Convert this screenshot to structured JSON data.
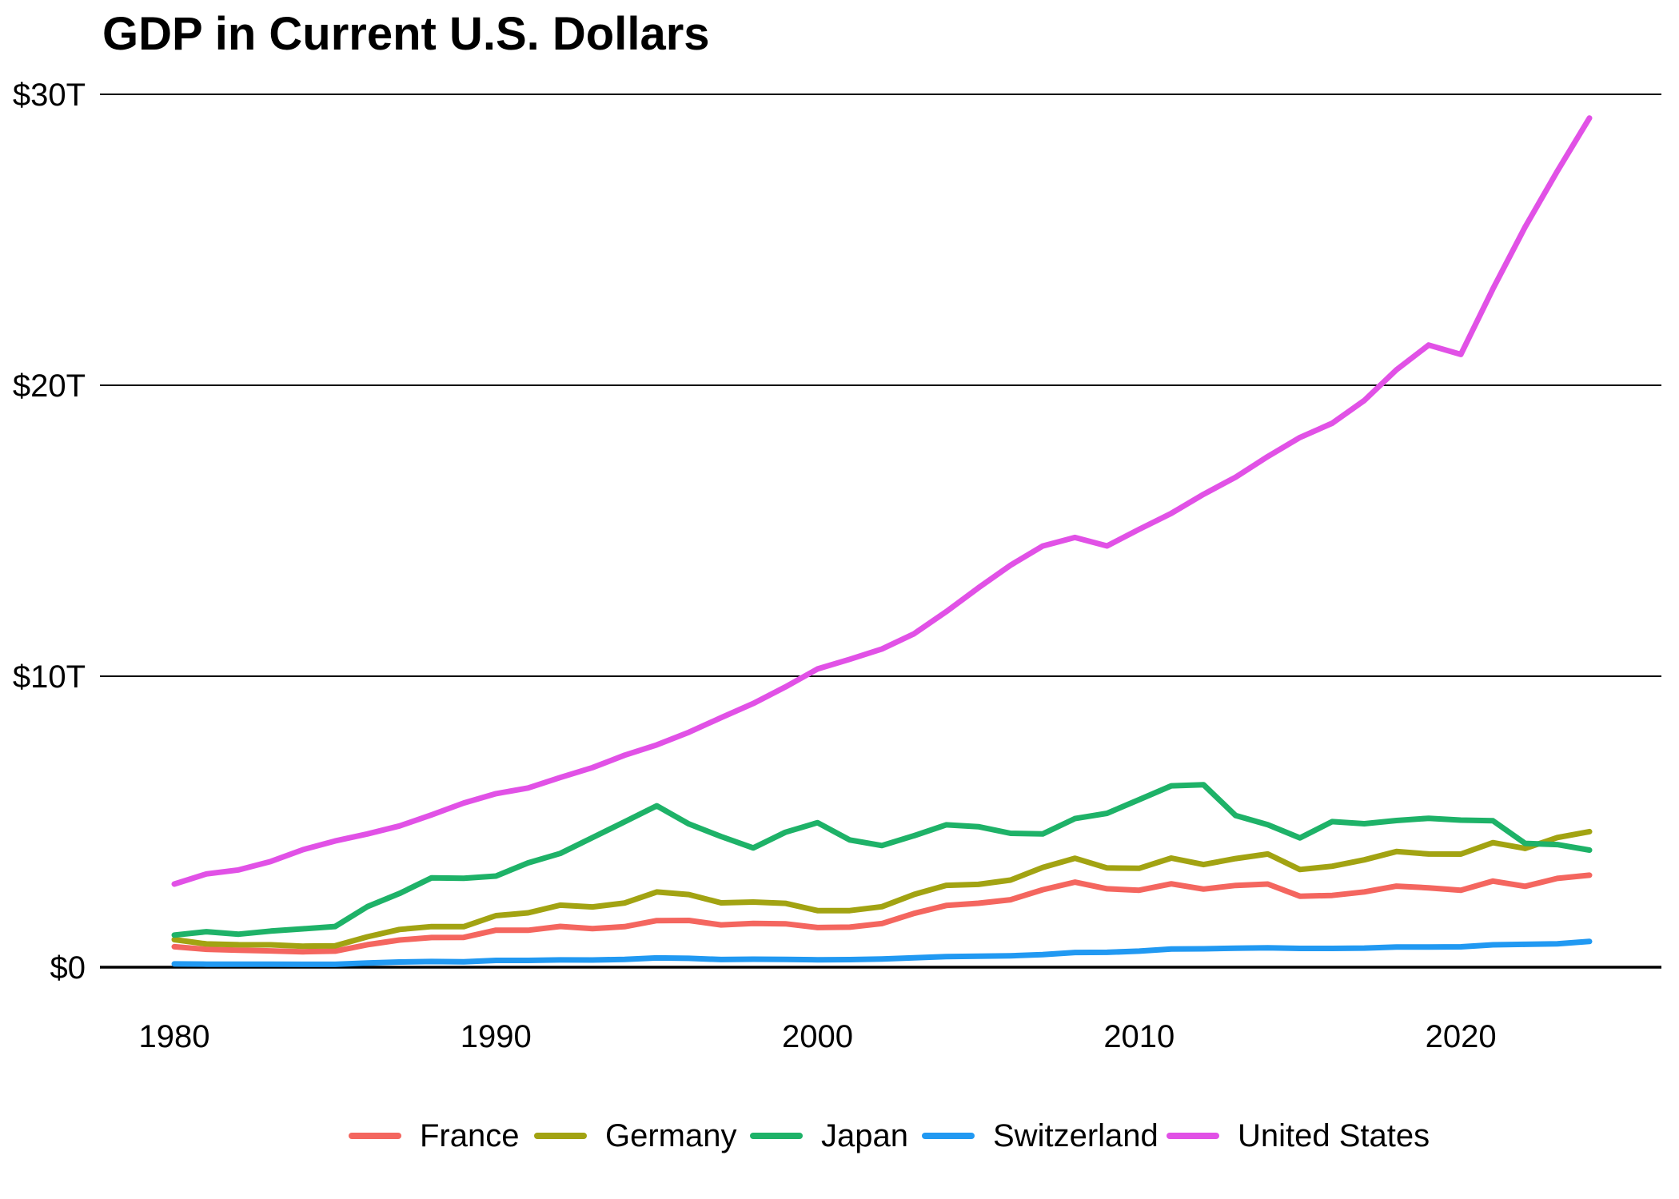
{
  "chart_data": {
    "type": "line",
    "title": "GDP in Current U.S. Dollars",
    "ylabel": "",
    "xlabel": "",
    "units": "trillions of current U.S. dollars",
    "xlim": [
      1980,
      2024
    ],
    "ylim": [
      0,
      30
    ],
    "grid": "horizontal-only",
    "legend_position": "bottom",
    "x_ticks": [
      {
        "value": 1980,
        "label": "1980"
      },
      {
        "value": 1990,
        "label": "1990"
      },
      {
        "value": 2000,
        "label": "2000"
      },
      {
        "value": 2010,
        "label": "2010"
      },
      {
        "value": 2020,
        "label": "2020"
      }
    ],
    "y_ticks": [
      {
        "value": 0,
        "label": "$0"
      },
      {
        "value": 10,
        "label": "$10T"
      },
      {
        "value": 20,
        "label": "$20T"
      },
      {
        "value": 30,
        "label": "$30T"
      }
    ],
    "years": [
      1980,
      1981,
      1982,
      1983,
      1984,
      1985,
      1986,
      1987,
      1988,
      1989,
      1990,
      1991,
      1992,
      1993,
      1994,
      1995,
      1996,
      1997,
      1998,
      1999,
      2000,
      2001,
      2002,
      2003,
      2004,
      2005,
      2006,
      2007,
      2008,
      2009,
      2010,
      2011,
      2012,
      2013,
      2014,
      2015,
      2016,
      2017,
      2018,
      2019,
      2020,
      2021,
      2022,
      2023,
      2024
    ],
    "series": [
      {
        "name": "France",
        "color": "#F4665F",
        "values": [
          0.702,
          0.616,
          0.585,
          0.56,
          0.53,
          0.553,
          0.771,
          0.934,
          1.019,
          1.025,
          1.272,
          1.27,
          1.402,
          1.323,
          1.394,
          1.602,
          1.606,
          1.453,
          1.504,
          1.493,
          1.362,
          1.377,
          1.501,
          1.848,
          2.12,
          2.198,
          2.32,
          2.663,
          2.923,
          2.694,
          2.645,
          2.865,
          2.683,
          2.811,
          2.856,
          2.439,
          2.466,
          2.589,
          2.786,
          2.729,
          2.645,
          2.959,
          2.78,
          3.052,
          3.162
        ]
      },
      {
        "name": "Germany",
        "color": "#A2A312",
        "values": [
          0.947,
          0.8,
          0.771,
          0.768,
          0.723,
          0.733,
          1.045,
          1.297,
          1.395,
          1.393,
          1.772,
          1.869,
          2.131,
          2.072,
          2.205,
          2.585,
          2.496,
          2.212,
          2.24,
          2.194,
          1.944,
          1.945,
          2.079,
          2.501,
          2.814,
          2.846,
          2.994,
          3.425,
          3.745,
          3.411,
          3.399,
          3.749,
          3.527,
          3.733,
          3.889,
          3.357,
          3.469,
          3.69,
          3.974,
          3.889,
          3.887,
          4.281,
          4.082,
          4.456,
          4.66
        ]
      },
      {
        "name": "Japan",
        "color": "#1EB268",
        "values": [
          1.105,
          1.219,
          1.134,
          1.243,
          1.318,
          1.398,
          2.079,
          2.533,
          3.072,
          3.054,
          3.132,
          3.584,
          3.908,
          4.454,
          4.998,
          5.546,
          4.923,
          4.492,
          4.098,
          4.636,
          4.968,
          4.374,
          4.182,
          4.519,
          4.893,
          4.831,
          4.601,
          4.579,
          5.106,
          5.289,
          5.759,
          6.233,
          6.272,
          5.212,
          4.897,
          4.444,
          5.004,
          4.931,
          5.041,
          5.118,
          5.056,
          5.034,
          4.256,
          4.213,
          4.026
        ]
      },
      {
        "name": "Switzerland",
        "color": "#2199F2",
        "values": [
          0.114,
          0.105,
          0.105,
          0.104,
          0.099,
          0.1,
          0.143,
          0.178,
          0.194,
          0.185,
          0.233,
          0.234,
          0.249,
          0.246,
          0.27,
          0.318,
          0.306,
          0.265,
          0.274,
          0.269,
          0.256,
          0.262,
          0.284,
          0.325,
          0.366,
          0.375,
          0.392,
          0.431,
          0.506,
          0.51,
          0.553,
          0.624,
          0.632,
          0.653,
          0.666,
          0.645,
          0.645,
          0.657,
          0.694,
          0.694,
          0.701,
          0.77,
          0.787,
          0.806,
          0.885
        ]
      },
      {
        "name": "United States",
        "color": "#E151E6",
        "values": [
          2.857,
          3.207,
          3.344,
          3.634,
          4.038,
          4.339,
          4.58,
          4.855,
          5.236,
          5.642,
          5.963,
          6.158,
          6.52,
          6.859,
          7.287,
          7.64,
          8.073,
          8.578,
          9.063,
          9.631,
          10.251,
          10.582,
          10.936,
          11.458,
          12.217,
          13.039,
          13.816,
          14.474,
          14.77,
          14.478,
          15.049,
          15.6,
          16.254,
          16.843,
          17.551,
          18.206,
          18.695,
          19.477,
          20.533,
          21.381,
          21.06,
          23.315,
          25.44,
          27.361,
          29.185
        ]
      }
    ]
  }
}
